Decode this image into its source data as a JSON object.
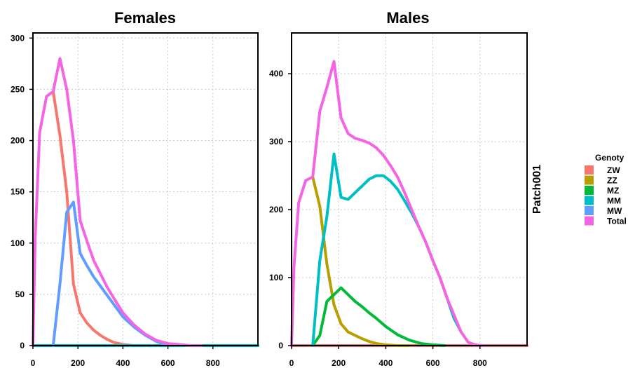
{
  "legend": {
    "title": "Genoty",
    "entries": [
      {
        "label": "ZW",
        "color": "#F8766D"
      },
      {
        "label": "ZZ",
        "color": "#B79F00"
      },
      {
        "label": "MZ",
        "color": "#00BA38"
      },
      {
        "label": "MM",
        "color": "#00BFC4"
      },
      {
        "label": "MW",
        "color": "#619CFF"
      },
      {
        "label": "Total",
        "color": "#F564E3"
      }
    ]
  },
  "strip_label": "Patch001",
  "chart_data": [
    {
      "type": "line",
      "title": "Females",
      "xlim": [
        0,
        1000
      ],
      "ylim": [
        0,
        305
      ],
      "x_ticks": [
        0,
        200,
        400,
        600,
        800
      ],
      "y_ticks": [
        0,
        50,
        100,
        150,
        200,
        250,
        300
      ],
      "grid": true,
      "series": [
        {
          "name": "ZW",
          "color": "#F8766D",
          "x": [
            90,
            120,
            150,
            180,
            210,
            240,
            270,
            300,
            330,
            360,
            400,
            450,
            500
          ],
          "y": [
            248,
            205,
            150,
            60,
            32,
            22,
            15,
            10,
            6,
            3,
            1,
            0,
            0
          ]
        },
        {
          "name": "ZZ",
          "color": "#B79F00",
          "x": [
            0,
            1000
          ],
          "y": [
            0,
            0
          ]
        },
        {
          "name": "MZ",
          "color": "#00BA38",
          "x": [
            0,
            1000
          ],
          "y": [
            0,
            0
          ]
        },
        {
          "name": "MM",
          "color": "#00BFC4",
          "x": [
            0,
            1000
          ],
          "y": [
            0,
            0
          ]
        },
        {
          "name": "MW",
          "color": "#619CFF",
          "x": [
            90,
            120,
            150,
            180,
            210,
            240,
            270,
            300,
            330,
            360,
            400,
            450,
            500,
            550,
            600
          ],
          "y": [
            0,
            60,
            130,
            140,
            90,
            78,
            67,
            58,
            49,
            40,
            28,
            18,
            10,
            4,
            0
          ]
        },
        {
          "name": "Total",
          "color": "#F564E3",
          "x": [
            0,
            10,
            30,
            60,
            90,
            120,
            150,
            180,
            210,
            240,
            270,
            300,
            330,
            360,
            400,
            450,
            500,
            550,
            600,
            650,
            700,
            750
          ],
          "y": [
            0,
            105,
            208,
            243,
            248,
            280,
            250,
            200,
            122,
            102,
            83,
            70,
            57,
            46,
            32,
            20,
            11,
            5,
            2,
            1,
            0,
            0
          ]
        }
      ]
    },
    {
      "type": "line",
      "title": "Males",
      "xlim": [
        0,
        1000
      ],
      "ylim": [
        0,
        460
      ],
      "x_ticks": [
        0,
        200,
        400,
        600,
        800
      ],
      "y_ticks": [
        0,
        100,
        200,
        300,
        400
      ],
      "grid": true,
      "series": [
        {
          "name": "ZW",
          "color": "#F8766D",
          "x": [
            0,
            1000
          ],
          "y": [
            0,
            0
          ]
        },
        {
          "name": "ZZ",
          "color": "#B79F00",
          "x": [
            90,
            120,
            150,
            180,
            210,
            240,
            270,
            300,
            330,
            360,
            400,
            450,
            500
          ],
          "y": [
            248,
            205,
            120,
            60,
            32,
            20,
            15,
            10,
            6,
            3,
            1,
            0,
            0
          ]
        },
        {
          "name": "MZ",
          "color": "#00BA38",
          "x": [
            90,
            120,
            150,
            180,
            210,
            240,
            270,
            300,
            330,
            360,
            400,
            450,
            500,
            550,
            600,
            650
          ],
          "y": [
            0,
            15,
            65,
            75,
            85,
            75,
            65,
            57,
            48,
            40,
            28,
            16,
            8,
            3,
            1,
            0
          ]
        },
        {
          "name": "MM",
          "color": "#00BFC4",
          "x": [
            90,
            120,
            150,
            180,
            210,
            240,
            270,
            300,
            330,
            360,
            390,
            420,
            450,
            480,
            510,
            540,
            570,
            600,
            630,
            660,
            690,
            720
          ],
          "y": [
            0,
            125,
            190,
            282,
            218,
            215,
            225,
            235,
            245,
            250,
            250,
            242,
            230,
            213,
            195,
            175,
            152,
            125,
            100,
            70,
            40,
            20
          ]
        },
        {
          "name": "Total",
          "color": "#F564E3",
          "x": [
            0,
            10,
            30,
            60,
            90,
            120,
            150,
            180,
            210,
            240,
            270,
            300,
            330,
            360,
            390,
            420,
            450,
            480,
            510,
            540,
            570,
            600,
            630,
            660,
            690,
            720,
            750,
            780,
            810
          ],
          "y": [
            0,
            115,
            210,
            243,
            248,
            345,
            380,
            418,
            335,
            312,
            305,
            302,
            298,
            291,
            280,
            265,
            248,
            225,
            200,
            175,
            152,
            125,
            100,
            70,
            45,
            20,
            5,
            1,
            0
          ]
        }
      ]
    }
  ]
}
